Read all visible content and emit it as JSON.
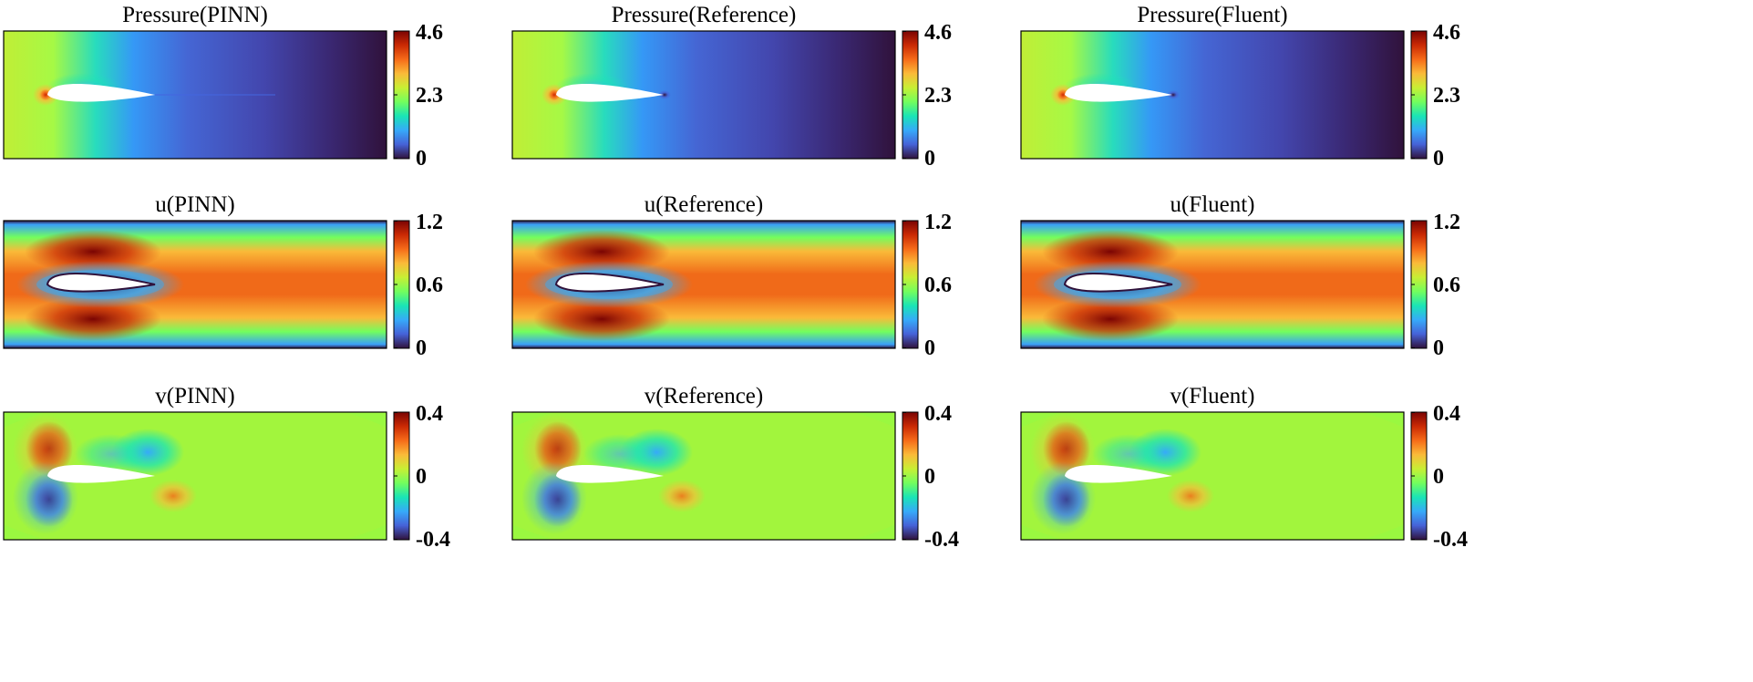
{
  "chart_data": [
    {
      "type": "heatmap",
      "title": "Pressure(PINN)",
      "field": "pressure",
      "colormap": "turbo",
      "colorbar_ticks": [
        "4.6",
        "2.3",
        "0"
      ],
      "clim": [
        0,
        4.6
      ]
    },
    {
      "type": "heatmap",
      "title": "Pressure(Reference)",
      "field": "pressure",
      "colormap": "turbo",
      "colorbar_ticks": [
        "4.6",
        "2.3",
        "0"
      ],
      "clim": [
        0,
        4.6
      ]
    },
    {
      "type": "heatmap",
      "title": "Pressure(Fluent)",
      "field": "pressure",
      "colormap": "turbo",
      "colorbar_ticks": [
        "4.6",
        "2.3",
        "0"
      ],
      "clim": [
        0,
        4.6
      ]
    },
    {
      "type": "heatmap",
      "title": "u(PINN)",
      "field": "u",
      "colormap": "turbo",
      "colorbar_ticks": [
        "1.2",
        "0.6",
        "0"
      ],
      "clim": [
        0,
        1.2
      ]
    },
    {
      "type": "heatmap",
      "title": "u(Reference)",
      "field": "u",
      "colormap": "turbo",
      "colorbar_ticks": [
        "1.2",
        "0.6",
        "0"
      ],
      "clim": [
        0,
        1.2
      ]
    },
    {
      "type": "heatmap",
      "title": "u(Fluent)",
      "field": "u",
      "colormap": "turbo",
      "colorbar_ticks": [
        "1.2",
        "0.6",
        "0"
      ],
      "clim": [
        0,
        1.2
      ]
    },
    {
      "type": "heatmap",
      "title": "v(PINN)",
      "field": "v",
      "colormap": "turbo",
      "colorbar_ticks": [
        "0.4",
        "0",
        "-0.4"
      ],
      "clim": [
        -0.4,
        0.4
      ]
    },
    {
      "type": "heatmap",
      "title": "v(Reference)",
      "field": "v",
      "colormap": "turbo",
      "colorbar_ticks": [
        "0.4",
        "0",
        "-0.4"
      ],
      "clim": [
        -0.4,
        0.4
      ]
    },
    {
      "type": "heatmap",
      "title": "v(Fluent)",
      "field": "v",
      "colormap": "turbo",
      "colorbar_ticks": [
        "0.4",
        "0",
        "-0.4"
      ],
      "clim": [
        -0.4,
        0.4
      ]
    }
  ],
  "colors": {
    "turbo_stops": [
      "#30123b",
      "#4662d7",
      "#36aaf9",
      "#1ae4b6",
      "#72fe5e",
      "#c8ef34",
      "#faba39",
      "#f66b19",
      "#ca2a04",
      "#7a0403"
    ],
    "airfoil": "#ffffff",
    "frame": "#000000"
  }
}
